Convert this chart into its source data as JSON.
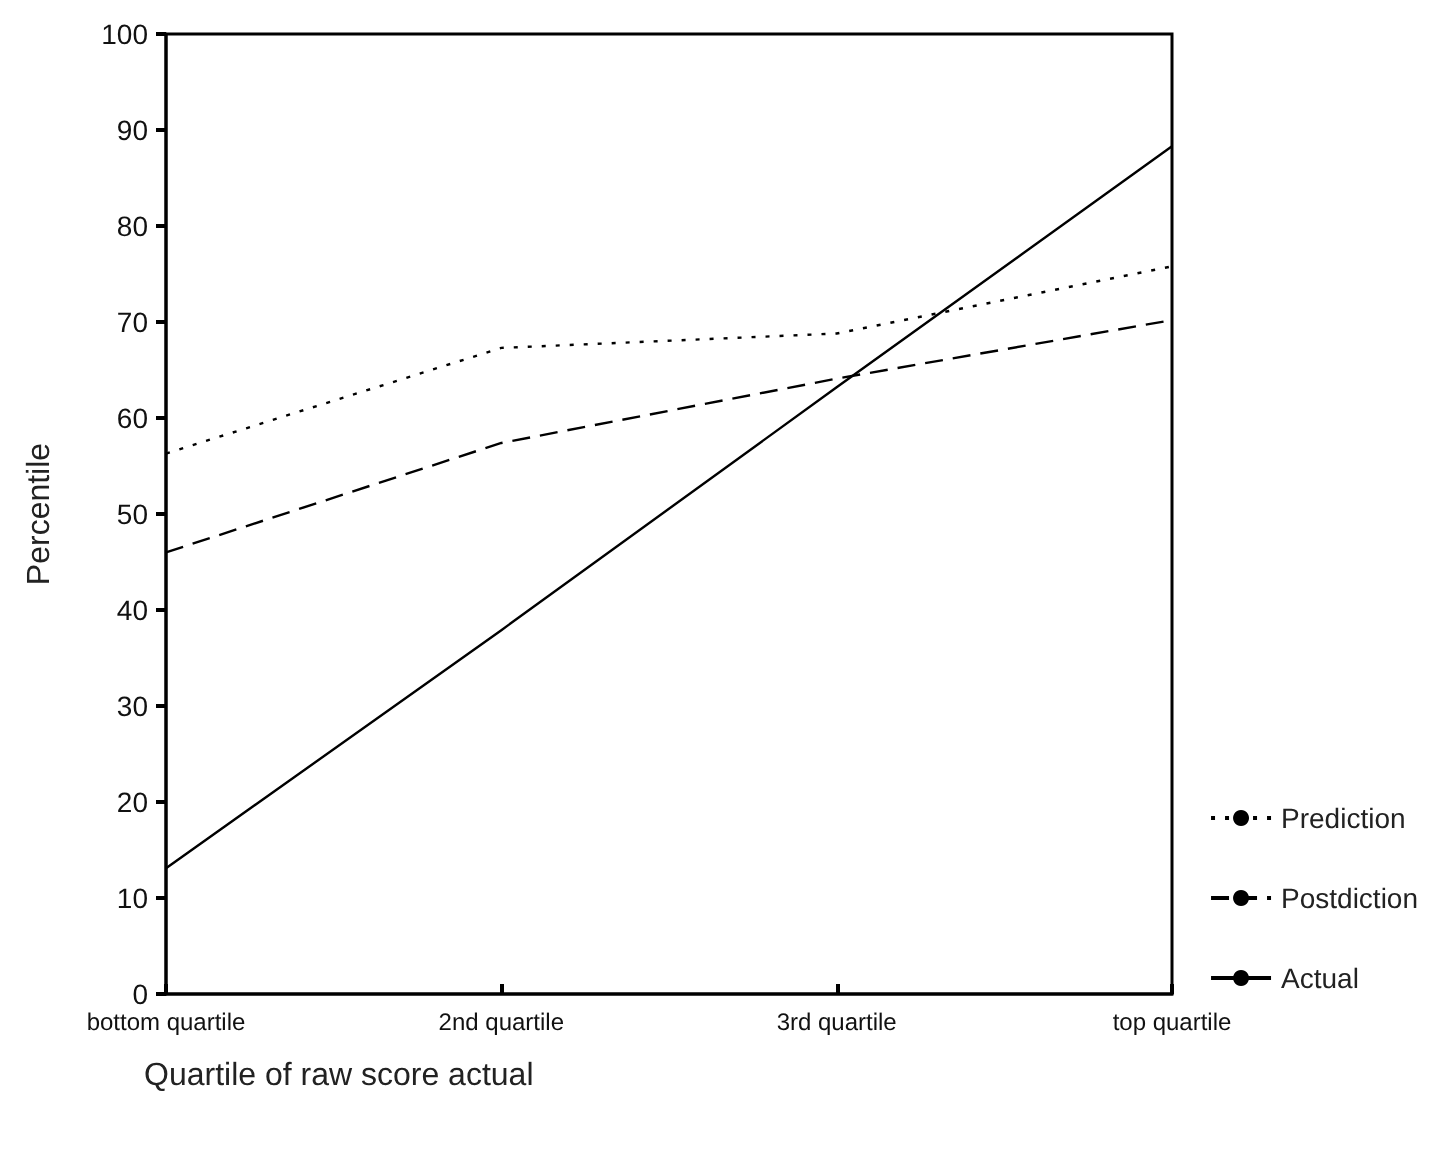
{
  "chart_data": {
    "type": "line",
    "xlabel": "Quartile of raw score actual",
    "ylabel": "Percentile",
    "categories": [
      "bottom quartile",
      "2nd quartile",
      "3rd quartile",
      "top quartile"
    ],
    "series": [
      {
        "name": "Prediction",
        "color": "#000000",
        "line_style": "dotted",
        "values": [
          56.3,
          67.3,
          68.8,
          75.8
        ]
      },
      {
        "name": "Postdiction",
        "color": "#000000",
        "line_style": "dashed",
        "values": [
          46,
          57.4,
          64.1,
          70.2
        ]
      },
      {
        "name": "Actual",
        "color": "#000000",
        "line_style": "solid",
        "values": [
          13.1,
          37.9,
          63.2,
          88.3
        ]
      }
    ],
    "ylim": [
      0,
      100
    ],
    "yticks": [
      0,
      10,
      20,
      30,
      40,
      50,
      60,
      70,
      80,
      90,
      100
    ],
    "grid": false,
    "legend": "right",
    "marker": "none"
  }
}
